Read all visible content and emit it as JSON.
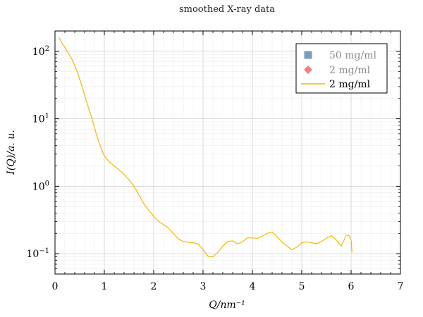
{
  "chart_data": {
    "type": "line",
    "title": "smoothed X-ray data",
    "xlabel": "Q/nm⁻¹",
    "ylabel": "I(Q)/a. u.",
    "xlim": [
      0,
      7
    ],
    "ylim": [
      0.05,
      200
    ],
    "yscale": "log",
    "grid": true,
    "legend_position": "top-right",
    "x_ticks": [
      0,
      1,
      2,
      3,
      4,
      5,
      6,
      7
    ],
    "y_ticks": [
      {
        "value": 0.1,
        "base": "10",
        "exp": "−1"
      },
      {
        "value": 1,
        "base": "10",
        "exp": "0"
      },
      {
        "value": 10,
        "base": "10",
        "exp": "1"
      },
      {
        "value": 100,
        "base": "10",
        "exp": "2"
      }
    ],
    "legend": [
      {
        "label": "50 mg/ml",
        "marker": "square",
        "color": "#7A9DBC",
        "muted": true
      },
      {
        "label": "2 mg/ml",
        "marker": "diamond",
        "color": "#F08080",
        "muted": true
      },
      {
        "label": "2 mg/ml",
        "marker": "line",
        "color": "#F5B800",
        "muted": false
      }
    ],
    "series": [
      {
        "name": "2 mg/ml",
        "color": "#F5B800",
        "x": [
          0.08,
          0.15,
          0.25,
          0.35,
          0.45,
          0.55,
          0.65,
          0.75,
          0.85,
          0.95,
          1.0,
          1.1,
          1.2,
          1.3,
          1.4,
          1.5,
          1.6,
          1.7,
          1.8,
          1.9,
          2.0,
          2.1,
          2.2,
          2.3,
          2.4,
          2.5,
          2.6,
          2.7,
          2.8,
          2.9,
          3.0,
          3.1,
          3.2,
          3.3,
          3.4,
          3.5,
          3.6,
          3.7,
          3.8,
          3.9,
          4.0,
          4.1,
          4.2,
          4.3,
          4.4,
          4.5,
          4.6,
          4.7,
          4.8,
          4.9,
          5.0,
          5.1,
          5.2,
          5.3,
          5.4,
          5.5,
          5.6,
          5.7,
          5.8,
          5.9,
          5.95,
          6.0,
          6.02
        ],
        "y": [
          160,
          130,
          100,
          75,
          50,
          30,
          17,
          10,
          5.5,
          3.4,
          2.8,
          2.3,
          2.0,
          1.75,
          1.5,
          1.25,
          1.0,
          0.75,
          0.55,
          0.44,
          0.36,
          0.3,
          0.27,
          0.24,
          0.2,
          0.165,
          0.152,
          0.148,
          0.146,
          0.14,
          0.115,
          0.092,
          0.09,
          0.105,
          0.13,
          0.152,
          0.155,
          0.14,
          0.15,
          0.172,
          0.172,
          0.168,
          0.182,
          0.2,
          0.21,
          0.18,
          0.148,
          0.13,
          0.115,
          0.125,
          0.145,
          0.15,
          0.145,
          0.14,
          0.152,
          0.17,
          0.185,
          0.16,
          0.13,
          0.185,
          0.19,
          0.16,
          0.105
        ]
      }
    ]
  }
}
